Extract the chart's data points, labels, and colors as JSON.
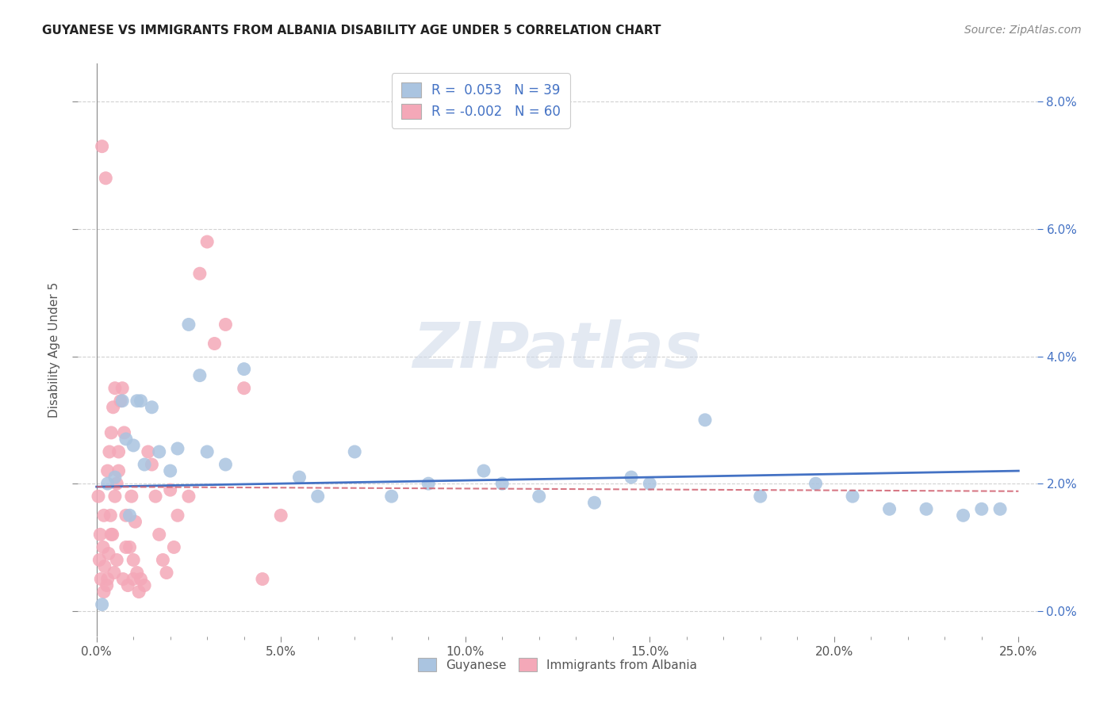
{
  "title": "GUYANESE VS IMMIGRANTS FROM ALBANIA DISABILITY AGE UNDER 5 CORRELATION CHART",
  "source": "Source: ZipAtlas.com",
  "ylabel": "Disability Age Under 5",
  "xlabel_ticks": [
    "0.0%",
    "",
    "",
    "",
    "",
    "5.0%",
    "",
    "",
    "",
    "",
    "10.0%",
    "",
    "",
    "",
    "",
    "15.0%",
    "",
    "",
    "",
    "",
    "20.0%",
    "",
    "",
    "",
    "",
    "25.0%"
  ],
  "xlabel_vals": [
    0.0,
    1.0,
    2.0,
    3.0,
    4.0,
    5.0,
    6.0,
    7.0,
    8.0,
    9.0,
    10.0,
    11.0,
    12.0,
    13.0,
    14.0,
    15.0,
    16.0,
    17.0,
    18.0,
    19.0,
    20.0,
    21.0,
    22.0,
    23.0,
    24.0,
    25.0
  ],
  "ylabel_ticks_right": [
    "0.0%",
    "2.0%",
    "4.0%",
    "6.0%",
    "8.0%"
  ],
  "ylabel_vals": [
    0.0,
    2.0,
    4.0,
    6.0,
    8.0
  ],
  "xlim": [
    -0.5,
    25.5
  ],
  "ylim": [
    -0.4,
    8.6
  ],
  "legend1_label": "R =  0.053   N = 39",
  "legend2_label": "R = -0.002   N = 60",
  "guyanese_color": "#aac4e0",
  "albania_color": "#f4a8b8",
  "trendline_guyanese_color": "#4472c4",
  "trendline_albania_color": "#d06070",
  "watermark": "ZIPatlas",
  "background_color": "#ffffff",
  "guyanese_x": [
    0.3,
    0.5,
    0.7,
    0.8,
    1.0,
    1.1,
    1.2,
    1.3,
    1.5,
    1.7,
    2.0,
    2.2,
    2.5,
    2.8,
    3.0,
    3.5,
    4.0,
    5.5,
    6.0,
    7.0,
    8.0,
    9.0,
    10.5,
    11.0,
    12.0,
    13.5,
    14.5,
    15.0,
    16.5,
    18.0,
    19.5,
    20.5,
    21.5,
    22.5,
    23.5,
    24.0,
    24.5,
    0.15,
    0.9
  ],
  "guyanese_y": [
    2.0,
    2.1,
    3.3,
    2.7,
    2.6,
    3.3,
    3.3,
    2.3,
    3.2,
    2.5,
    2.2,
    2.55,
    4.5,
    3.7,
    2.5,
    2.3,
    3.8,
    2.1,
    1.8,
    2.5,
    1.8,
    2.0,
    2.2,
    2.0,
    1.8,
    1.7,
    2.1,
    2.0,
    3.0,
    1.8,
    2.0,
    1.8,
    1.6,
    1.6,
    1.5,
    1.6,
    1.6,
    0.1,
    1.5
  ],
  "albania_x": [
    0.05,
    0.08,
    0.1,
    0.12,
    0.15,
    0.18,
    0.2,
    0.22,
    0.25,
    0.28,
    0.3,
    0.33,
    0.35,
    0.38,
    0.4,
    0.43,
    0.45,
    0.48,
    0.5,
    0.5,
    0.55,
    0.55,
    0.6,
    0.65,
    0.7,
    0.72,
    0.75,
    0.8,
    0.85,
    0.9,
    0.95,
    1.0,
    1.05,
    1.1,
    1.15,
    1.2,
    1.3,
    1.4,
    1.5,
    1.6,
    1.7,
    1.8,
    1.9,
    2.0,
    2.1,
    2.2,
    2.5,
    2.8,
    3.0,
    3.2,
    3.5,
    4.0,
    4.5,
    5.0,
    0.2,
    0.3,
    0.4,
    0.6,
    0.8,
    1.0
  ],
  "albania_y": [
    1.8,
    0.8,
    1.2,
    0.5,
    7.3,
    1.0,
    1.5,
    0.7,
    6.8,
    0.4,
    2.2,
    0.9,
    2.5,
    1.5,
    2.8,
    1.2,
    3.2,
    0.6,
    3.5,
    1.8,
    2.0,
    0.8,
    2.2,
    3.3,
    3.5,
    0.5,
    2.8,
    1.5,
    0.4,
    1.0,
    1.8,
    0.8,
    1.4,
    0.6,
    0.3,
    0.5,
    0.4,
    2.5,
    2.3,
    1.8,
    1.2,
    0.8,
    0.6,
    1.9,
    1.0,
    1.5,
    1.8,
    5.3,
    5.8,
    4.2,
    4.5,
    3.5,
    0.5,
    1.5,
    0.3,
    0.5,
    1.2,
    2.5,
    1.0,
    0.5
  ],
  "trendline_blue_x0": 0.0,
  "trendline_blue_y0": 1.95,
  "trendline_blue_x1": 25.0,
  "trendline_blue_y1": 2.2,
  "trendline_pink_x0": 0.0,
  "trendline_pink_y0": 1.95,
  "trendline_pink_x1": 25.0,
  "trendline_pink_y1": 1.88,
  "legend_guyanese": "Guyanese",
  "legend_albania": "Immigrants from Albania"
}
